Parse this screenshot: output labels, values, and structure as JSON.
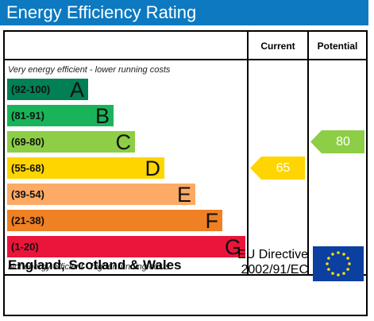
{
  "header": {
    "title": "Energy Efficiency Rating"
  },
  "columns": {
    "current": "Current",
    "potential": "Potential"
  },
  "captions": {
    "top": "Very energy efficient - lower running costs",
    "bottom": "Not energy efficient - higher running costs"
  },
  "footer": {
    "region": "England, Scotland & Wales",
    "directive_line1": "EU Directive",
    "directive_line2": "2002/91/EC"
  },
  "chart_data": {
    "type": "bar",
    "categories": [
      "A",
      "B",
      "C",
      "D",
      "E",
      "F",
      "G"
    ],
    "bands": [
      {
        "letter": "A",
        "range": "(92-100)",
        "min": 92,
        "max": 100,
        "color": "#008054"
      },
      {
        "letter": "B",
        "range": "(81-91)",
        "min": 81,
        "max": 91,
        "color": "#19b459"
      },
      {
        "letter": "C",
        "range": "(69-80)",
        "min": 69,
        "max": 80,
        "color": "#8dce46"
      },
      {
        "letter": "D",
        "range": "(55-68)",
        "min": 55,
        "max": 68,
        "color": "#ffd500"
      },
      {
        "letter": "E",
        "range": "(39-54)",
        "min": 39,
        "max": 54,
        "color": "#fcaa65"
      },
      {
        "letter": "F",
        "range": "(21-38)",
        "min": 21,
        "max": 38,
        "color": "#ef8023"
      },
      {
        "letter": "G",
        "range": "(1-20)",
        "min": 1,
        "max": 20,
        "color": "#e9153b"
      }
    ],
    "current": {
      "value": 65,
      "band": "D",
      "color": "#ffd500",
      "label": "65"
    },
    "potential": {
      "value": 80,
      "band": "C",
      "color": "#8dce46",
      "label": "80"
    }
  }
}
